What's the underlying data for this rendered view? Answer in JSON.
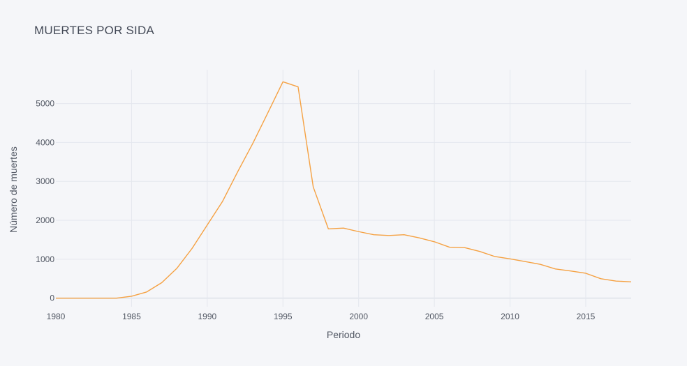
{
  "chart_data": {
    "type": "line",
    "title": "MUERTES POR SIDA",
    "xlabel": "Periodo",
    "ylabel": "Número de muertes",
    "xlim": [
      1980,
      2018
    ],
    "ylim": [
      -220,
      5870
    ],
    "x_ticks": [
      1980,
      1985,
      1990,
      1995,
      2000,
      2005,
      2010,
      2015
    ],
    "y_ticks": [
      0,
      1000,
      2000,
      3000,
      4000,
      5000
    ],
    "grid": true,
    "line_color": "#f5a142",
    "series": [
      {
        "x": [
          1980,
          1981,
          1982,
          1983,
          1984,
          1985,
          1986,
          1987,
          1988,
          1989,
          1990,
          1991,
          1992,
          1993,
          1994,
          1995,
          1996,
          1997,
          1998,
          1999,
          2000,
          2001,
          2002,
          2003,
          2004,
          2005,
          2006,
          2007,
          2008,
          2009,
          2010,
          2011,
          2012,
          2013,
          2014,
          2015,
          2016,
          2017,
          2018
        ],
        "values": [
          0,
          0,
          0,
          0,
          1,
          50,
          160,
          400,
          770,
          1280,
          1880,
          2480,
          3240,
          3970,
          4760,
          5560,
          5430,
          2860,
          1780,
          1800,
          1710,
          1630,
          1610,
          1630,
          1550,
          1450,
          1310,
          1300,
          1200,
          1070,
          1010,
          940,
          870,
          750,
          700,
          640,
          500,
          440,
          420
        ]
      }
    ]
  }
}
